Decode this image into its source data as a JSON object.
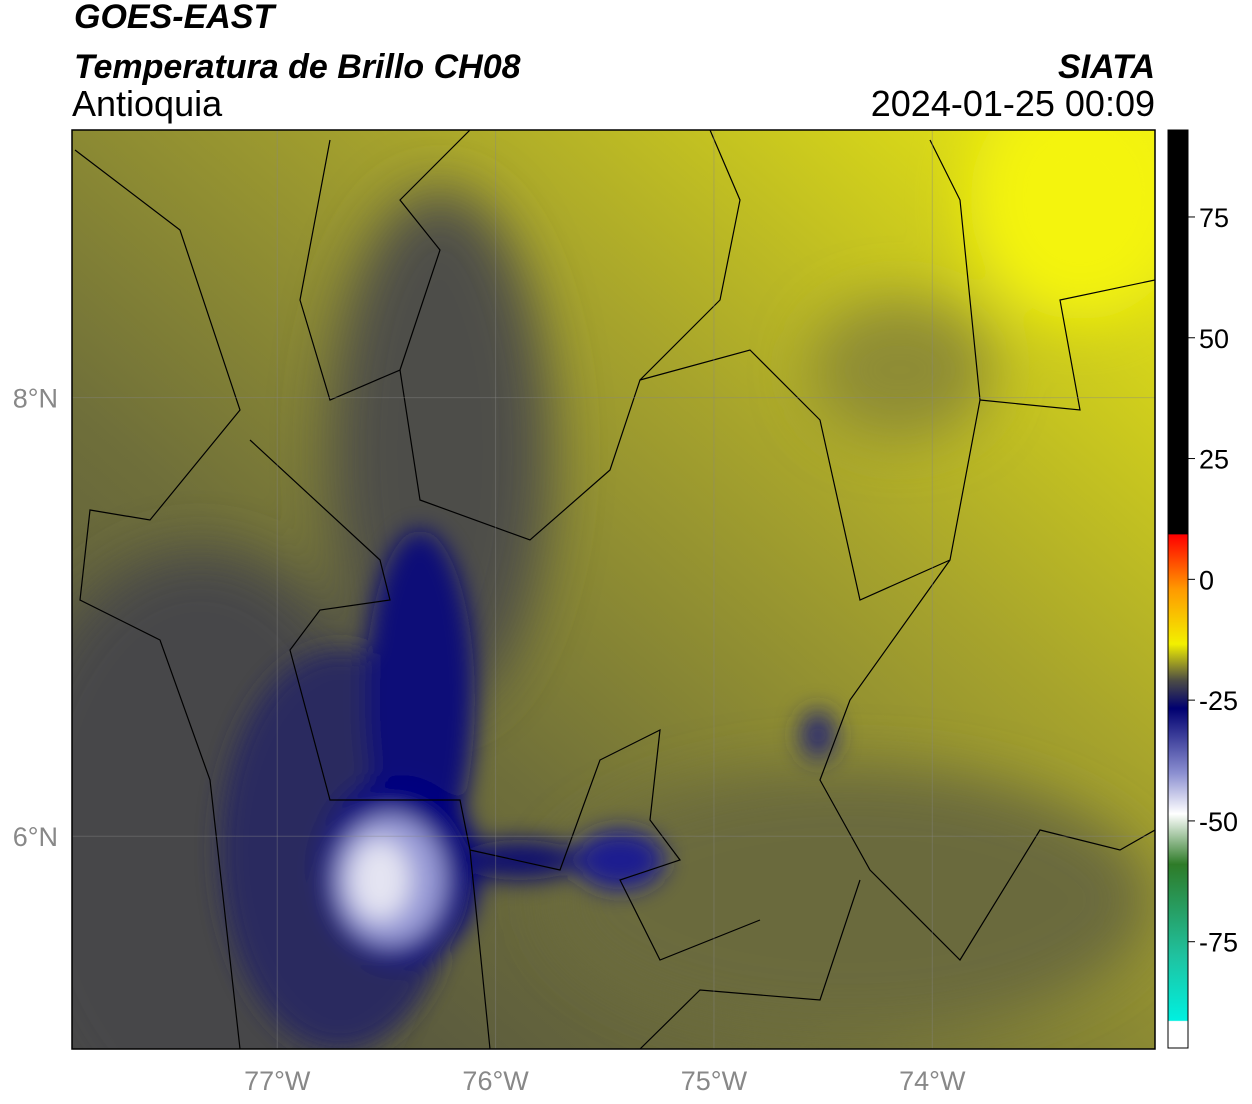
{
  "header": {
    "title": "GOES-EAST",
    "subtitle": "Temperatura de Brillo CH08",
    "region": "Antioquia",
    "source": "SIATA",
    "timestamp": "2024-01-25 00:09"
  },
  "map": {
    "lonlim": [
      -77.94,
      -72.98
    ],
    "latlim": [
      5.03,
      9.22
    ],
    "lonticks": [
      {
        "value": -77,
        "label": "77°W"
      },
      {
        "value": -76,
        "label": "76°W"
      },
      {
        "value": -75,
        "label": "75°W"
      },
      {
        "value": -74,
        "label": "74°W"
      }
    ],
    "latticks": [
      {
        "value": 8,
        "label": "8°N"
      },
      {
        "value": 6,
        "label": "6°N"
      }
    ],
    "grid": true
  },
  "colorbar": {
    "lim": [
      -97,
      93
    ],
    "ticks": [
      75,
      50,
      25,
      0,
      -25,
      -50,
      -75
    ]
  }
}
